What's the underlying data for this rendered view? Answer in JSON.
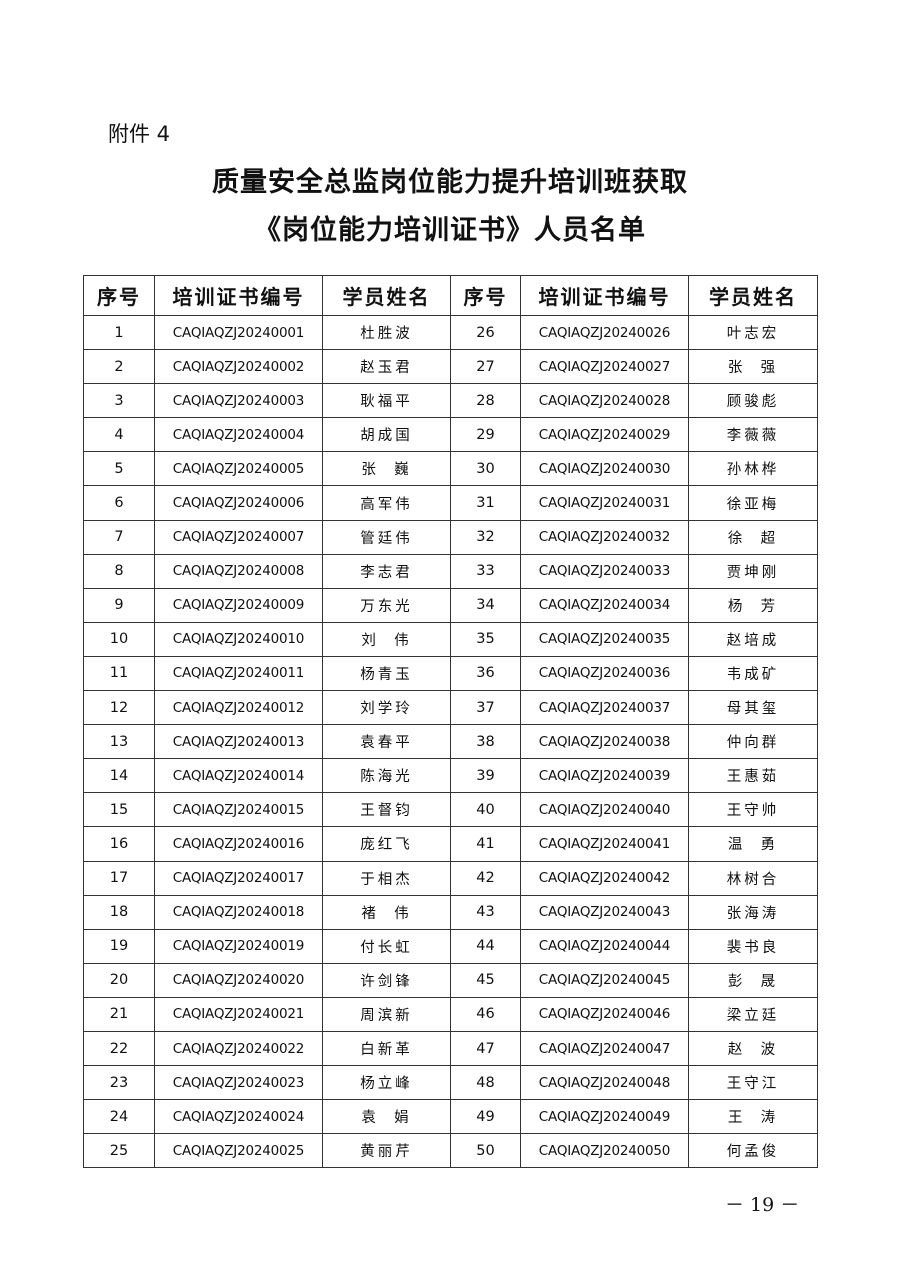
{
  "attachment_label": "附件 4",
  "title_line1": "质量安全总监岗位能力提升培训班获取",
  "title_line2": "《岗位能力培训证书》人员名单",
  "table": {
    "headers": [
      "序号",
      "培训证书编号",
      "学员姓名",
      "序号",
      "培训证书编号",
      "学员姓名"
    ],
    "rows": [
      [
        "1",
        "CAQIAQZJ20240001",
        "杜胜波",
        "26",
        "CAQIAQZJ20240026",
        "叶志宏"
      ],
      [
        "2",
        "CAQIAQZJ20240002",
        "赵玉君",
        "27",
        "CAQIAQZJ20240027",
        "张  强"
      ],
      [
        "3",
        "CAQIAQZJ20240003",
        "耿福平",
        "28",
        "CAQIAQZJ20240028",
        "顾骏彪"
      ],
      [
        "4",
        "CAQIAQZJ20240004",
        "胡成国",
        "29",
        "CAQIAQZJ20240029",
        "李薇薇"
      ],
      [
        "5",
        "CAQIAQZJ20240005",
        "张  巍",
        "30",
        "CAQIAQZJ20240030",
        "孙林桦"
      ],
      [
        "6",
        "CAQIAQZJ20240006",
        "高军伟",
        "31",
        "CAQIAQZJ20240031",
        "徐亚梅"
      ],
      [
        "7",
        "CAQIAQZJ20240007",
        "管廷伟",
        "32",
        "CAQIAQZJ20240032",
        "徐  超"
      ],
      [
        "8",
        "CAQIAQZJ20240008",
        "李志君",
        "33",
        "CAQIAQZJ20240033",
        "贾坤刚"
      ],
      [
        "9",
        "CAQIAQZJ20240009",
        "万东光",
        "34",
        "CAQIAQZJ20240034",
        "杨  芳"
      ],
      [
        "10",
        "CAQIAQZJ20240010",
        "刘  伟",
        "35",
        "CAQIAQZJ20240035",
        "赵培成"
      ],
      [
        "11",
        "CAQIAQZJ20240011",
        "杨青玉",
        "36",
        "CAQIAQZJ20240036",
        "韦成矿"
      ],
      [
        "12",
        "CAQIAQZJ20240012",
        "刘学玲",
        "37",
        "CAQIAQZJ20240037",
        "母其玺"
      ],
      [
        "13",
        "CAQIAQZJ20240013",
        "袁春平",
        "38",
        "CAQIAQZJ20240038",
        "仲向群"
      ],
      [
        "14",
        "CAQIAQZJ20240014",
        "陈海光",
        "39",
        "CAQIAQZJ20240039",
        "王惠茹"
      ],
      [
        "15",
        "CAQIAQZJ20240015",
        "王督钧",
        "40",
        "CAQIAQZJ20240040",
        "王守帅"
      ],
      [
        "16",
        "CAQIAQZJ20240016",
        "庞红飞",
        "41",
        "CAQIAQZJ20240041",
        "温  勇"
      ],
      [
        "17",
        "CAQIAQZJ20240017",
        "于相杰",
        "42",
        "CAQIAQZJ20240042",
        "林树合"
      ],
      [
        "18",
        "CAQIAQZJ20240018",
        "褚  伟",
        "43",
        "CAQIAQZJ20240043",
        "张海涛"
      ],
      [
        "19",
        "CAQIAQZJ20240019",
        "付长虹",
        "44",
        "CAQIAQZJ20240044",
        "裴书良"
      ],
      [
        "20",
        "CAQIAQZJ20240020",
        "许剑锋",
        "45",
        "CAQIAQZJ20240045",
        "彭  晟"
      ],
      [
        "21",
        "CAQIAQZJ20240021",
        "周滨新",
        "46",
        "CAQIAQZJ20240046",
        "梁立廷"
      ],
      [
        "22",
        "CAQIAQZJ20240022",
        "白新革",
        "47",
        "CAQIAQZJ20240047",
        "赵  波"
      ],
      [
        "23",
        "CAQIAQZJ20240023",
        "杨立峰",
        "48",
        "CAQIAQZJ20240048",
        "王守江"
      ],
      [
        "24",
        "CAQIAQZJ20240024",
        "袁  娟",
        "49",
        "CAQIAQZJ20240049",
        "王  涛"
      ],
      [
        "25",
        "CAQIAQZJ20240025",
        "黄丽芹",
        "50",
        "CAQIAQZJ20240050",
        "何孟俊"
      ]
    ]
  },
  "page_number": "－ 19 －"
}
